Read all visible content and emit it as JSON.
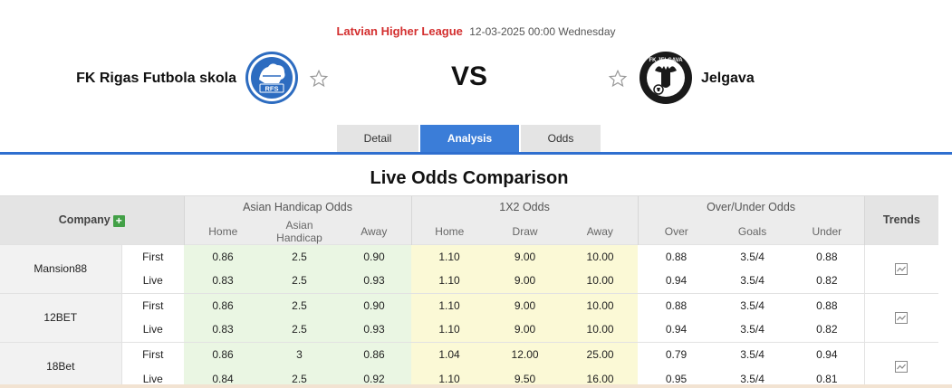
{
  "match": {
    "league": "Latvian Higher League",
    "datetime": "12-03-2025 00:00",
    "weekday": "Wednesday",
    "home_team": "FK Rigas Futbola skola",
    "home_logo_text": "RFS",
    "vs": "VS",
    "away_team": "Jelgava",
    "away_logo_text": "FK JELGAVA"
  },
  "tabs": [
    {
      "label": "Detail",
      "active": false
    },
    {
      "label": "Analysis",
      "active": true
    },
    {
      "label": "Odds",
      "active": false
    }
  ],
  "section_title": "Live Odds Comparison",
  "table": {
    "company_header": "Company",
    "groups": [
      "Asian Handicap Odds",
      "1X2 Odds",
      "Over/Under Odds"
    ],
    "trends_header": "Trends",
    "subheaders": [
      "Home",
      "Asian Handicap",
      "Away",
      "Home",
      "Draw",
      "Away",
      "Over",
      "Goals",
      "Under"
    ],
    "rows": [
      {
        "company": "Mansion88",
        "first": {
          "label": "First",
          "values": [
            "0.86",
            "2.5",
            "0.90",
            "1.10",
            "9.00",
            "10.00",
            "0.88",
            "3.5/4",
            "0.88"
          ]
        },
        "live": {
          "label": "Live",
          "values": [
            "0.83",
            "2.5",
            "0.93",
            "1.10",
            "9.00",
            "10.00",
            "0.94",
            "3.5/4",
            "0.82"
          ]
        }
      },
      {
        "company": "12BET",
        "first": {
          "label": "First",
          "values": [
            "0.86",
            "2.5",
            "0.90",
            "1.10",
            "9.00",
            "10.00",
            "0.88",
            "3.5/4",
            "0.88"
          ]
        },
        "live": {
          "label": "Live",
          "values": [
            "0.83",
            "2.5",
            "0.93",
            "1.10",
            "9.00",
            "10.00",
            "0.94",
            "3.5/4",
            "0.82"
          ]
        }
      },
      {
        "company": "18Bet",
        "first": {
          "label": "First",
          "values": [
            "0.86",
            "3",
            "0.86",
            "1.04",
            "12.00",
            "25.00",
            "0.79",
            "3.5/4",
            "0.94"
          ]
        },
        "live": {
          "label": "Live",
          "values": [
            "0.84",
            "2.5",
            "0.92",
            "1.10",
            "9.50",
            "16.00",
            "0.95",
            "3.5/4",
            "0.81"
          ]
        }
      }
    ]
  },
  "colors": {
    "league": "#d32f2f",
    "tab_active": "#3b7dd8",
    "asian_bg": "#eaf6e3",
    "x12_bg": "#fbf9d6",
    "plus": "#43a047"
  }
}
